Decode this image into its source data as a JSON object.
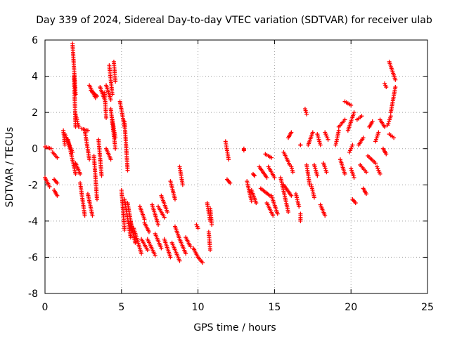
{
  "chart_data": {
    "type": "scatter",
    "title": "Day 339 of 2024, Sidereal Day-to-day VTEC variation (SDTVAR) for receiver ulab",
    "xlabel": "GPS time / hours",
    "ylabel": "SDTVAR / TECUs",
    "xlim": [
      0,
      25
    ],
    "ylim": [
      -8,
      6
    ],
    "xticks": [
      "0",
      "5",
      "10",
      "15",
      "20",
      "25"
    ],
    "yticks": [
      "-8",
      "-6",
      "-4",
      "-2",
      "0",
      "2",
      "4",
      "6"
    ],
    "grid": true,
    "marker": "plus",
    "color": "#ff0000",
    "series": [
      {
        "name": "SDTVAR",
        "segments": [
          [
            0.0,
            0.1,
            0.4,
            0.0
          ],
          [
            0.0,
            -1.6,
            0.3,
            -2.1
          ],
          [
            0.5,
            -0.2,
            0.8,
            -0.5
          ],
          [
            0.6,
            -1.7,
            0.8,
            -1.9
          ],
          [
            0.6,
            -2.3,
            0.8,
            -2.6
          ],
          [
            1.2,
            1.0,
            1.3,
            0.2
          ],
          [
            1.3,
            0.8,
            1.8,
            -0.2
          ],
          [
            1.5,
            0.5,
            2.0,
            -1.4
          ],
          [
            1.8,
            5.8,
            2.0,
            3.0
          ],
          [
            1.9,
            4.0,
            2.0,
            1.2
          ],
          [
            2.0,
            1.9,
            2.2,
            1.2
          ],
          [
            2.0,
            -0.8,
            2.3,
            -1.4
          ],
          [
            2.4,
            1.1,
            2.8,
            1.0
          ],
          [
            2.3,
            -1.9,
            2.6,
            -3.7
          ],
          [
            2.6,
            1.0,
            2.9,
            -0.6
          ],
          [
            2.8,
            -2.5,
            3.1,
            -3.7
          ],
          [
            2.9,
            3.5,
            3.3,
            2.8
          ],
          [
            3.0,
            3.2,
            3.4,
            2.9
          ],
          [
            3.2,
            -0.4,
            3.4,
            -2.8
          ],
          [
            3.5,
            0.5,
            3.7,
            -1.5
          ],
          [
            3.6,
            3.4,
            3.9,
            2.7
          ],
          [
            3.9,
            3.1,
            4.0,
            1.7
          ],
          [
            4.0,
            3.5,
            4.3,
            2.7
          ],
          [
            4.2,
            4.6,
            4.4,
            3.0
          ],
          [
            4.3,
            2.2,
            4.6,
            0.0
          ],
          [
            4.5,
            4.8,
            4.6,
            3.7
          ],
          [
            4.4,
            1.6,
            4.6,
            0.6
          ],
          [
            4.0,
            0.0,
            4.3,
            -0.6
          ],
          [
            4.9,
            2.6,
            5.2,
            1.2
          ],
          [
            5.0,
            -2.3,
            5.2,
            -4.5
          ],
          [
            5.2,
            1.5,
            5.4,
            -1.2
          ],
          [
            5.2,
            -2.8,
            5.6,
            -4.9
          ],
          [
            5.4,
            -3.0,
            5.7,
            -4.5
          ],
          [
            5.6,
            -4.1,
            5.9,
            -5.2
          ],
          [
            5.8,
            -4.4,
            6.3,
            -5.8
          ],
          [
            6.2,
            -3.2,
            6.5,
            -3.9
          ],
          [
            6.3,
            -5.0,
            6.7,
            -5.6
          ],
          [
            6.5,
            -4.1,
            6.8,
            -4.6
          ],
          [
            6.7,
            -5.0,
            7.2,
            -5.9
          ],
          [
            7.0,
            -3.1,
            7.4,
            -4.2
          ],
          [
            7.2,
            -4.7,
            7.6,
            -5.5
          ],
          [
            7.4,
            -3.2,
            7.8,
            -3.8
          ],
          [
            7.6,
            -2.6,
            8.0,
            -3.5
          ],
          [
            7.8,
            -5.0,
            8.2,
            -6.0
          ],
          [
            8.2,
            -1.8,
            8.5,
            -2.8
          ],
          [
            8.3,
            -5.2,
            8.8,
            -6.2
          ],
          [
            8.5,
            -4.3,
            8.8,
            -5.0
          ],
          [
            8.8,
            -1.0,
            9.0,
            -2.0
          ],
          [
            8.8,
            -5.0,
            9.2,
            -5.8
          ],
          [
            9.2,
            -4.9,
            9.5,
            -5.4
          ],
          [
            9.7,
            -5.5,
            10.0,
            -6.0
          ],
          [
            9.9,
            -4.2,
            10.0,
            -4.4
          ],
          [
            10.0,
            -6.0,
            10.3,
            -6.3
          ],
          [
            10.6,
            -3.0,
            10.8,
            -4.0
          ],
          [
            10.7,
            -4.6,
            10.8,
            -5.6
          ],
          [
            10.8,
            -3.3,
            10.9,
            -4.2
          ],
          [
            11.8,
            0.4,
            12.0,
            -0.6
          ],
          [
            11.9,
            -1.7,
            12.1,
            -1.9
          ],
          [
            13.0,
            0.0,
            13.0,
            -0.1
          ],
          [
            13.2,
            -1.8,
            13.5,
            -2.9
          ],
          [
            13.5,
            -2.3,
            13.8,
            -3.0
          ],
          [
            13.6,
            -1.4,
            13.7,
            -1.5
          ],
          [
            14.0,
            -1.0,
            14.5,
            -1.6
          ],
          [
            14.1,
            -2.2,
            14.7,
            -2.6
          ],
          [
            14.4,
            -0.3,
            14.8,
            -0.5
          ],
          [
            14.5,
            -3.0,
            14.9,
            -3.7
          ],
          [
            14.6,
            -1.0,
            15.0,
            -1.6
          ],
          [
            14.8,
            -2.6,
            15.2,
            -3.6
          ],
          [
            15.4,
            -1.6,
            15.9,
            -3.5
          ],
          [
            15.6,
            -0.2,
            16.0,
            -0.9
          ],
          [
            15.9,
            0.6,
            16.1,
            0.9
          ],
          [
            15.6,
            -2.0,
            16.1,
            -2.6
          ],
          [
            16.1,
            -1.0,
            16.2,
            -1.3
          ],
          [
            16.4,
            -2.5,
            16.6,
            -3.2
          ],
          [
            16.7,
            -3.6,
            16.7,
            -4.0
          ],
          [
            16.7,
            0.2,
            16.7,
            0.2
          ],
          [
            17.0,
            2.2,
            17.1,
            1.9
          ],
          [
            17.1,
            -0.9,
            17.3,
            -2.0
          ],
          [
            17.2,
            0.2,
            17.5,
            0.9
          ],
          [
            17.4,
            -2.0,
            17.6,
            -2.7
          ],
          [
            17.6,
            -0.9,
            17.8,
            -1.5
          ],
          [
            17.8,
            0.8,
            18.0,
            0.2
          ],
          [
            18.0,
            -3.1,
            18.3,
            -3.7
          ],
          [
            18.2,
            -0.8,
            18.4,
            -1.3
          ],
          [
            18.3,
            0.9,
            18.5,
            0.5
          ],
          [
            19.0,
            0.2,
            19.2,
            1.0
          ],
          [
            19.2,
            1.2,
            19.6,
            1.6
          ],
          [
            19.3,
            -0.6,
            19.6,
            -1.4
          ],
          [
            19.6,
            2.6,
            20.0,
            2.4
          ],
          [
            19.8,
            1.0,
            20.2,
            2.0
          ],
          [
            19.9,
            -0.2,
            20.1,
            0.2
          ],
          [
            20.0,
            -1.1,
            20.2,
            -1.6
          ],
          [
            20.1,
            -2.8,
            20.3,
            -3.0
          ],
          [
            20.4,
            1.6,
            20.7,
            1.8
          ],
          [
            20.5,
            0.2,
            20.8,
            0.6
          ],
          [
            20.6,
            -0.9,
            21.0,
            -1.3
          ],
          [
            20.8,
            -2.2,
            21.0,
            -2.5
          ],
          [
            21.2,
            1.2,
            21.4,
            1.5
          ],
          [
            21.1,
            -0.4,
            21.6,
            -0.8
          ],
          [
            21.6,
            0.4,
            21.8,
            0.9
          ],
          [
            21.7,
            -1.0,
            21.9,
            -1.4
          ],
          [
            21.9,
            1.6,
            22.2,
            1.2
          ],
          [
            22.1,
            0.0,
            22.3,
            -0.3
          ],
          [
            22.2,
            3.6,
            22.3,
            3.4
          ],
          [
            22.4,
            1.3,
            22.6,
            1.8
          ],
          [
            22.5,
            4.8,
            22.9,
            3.8
          ],
          [
            22.6,
            2.0,
            22.9,
            3.4
          ],
          [
            22.5,
            0.8,
            22.8,
            0.6
          ]
        ]
      }
    ]
  }
}
